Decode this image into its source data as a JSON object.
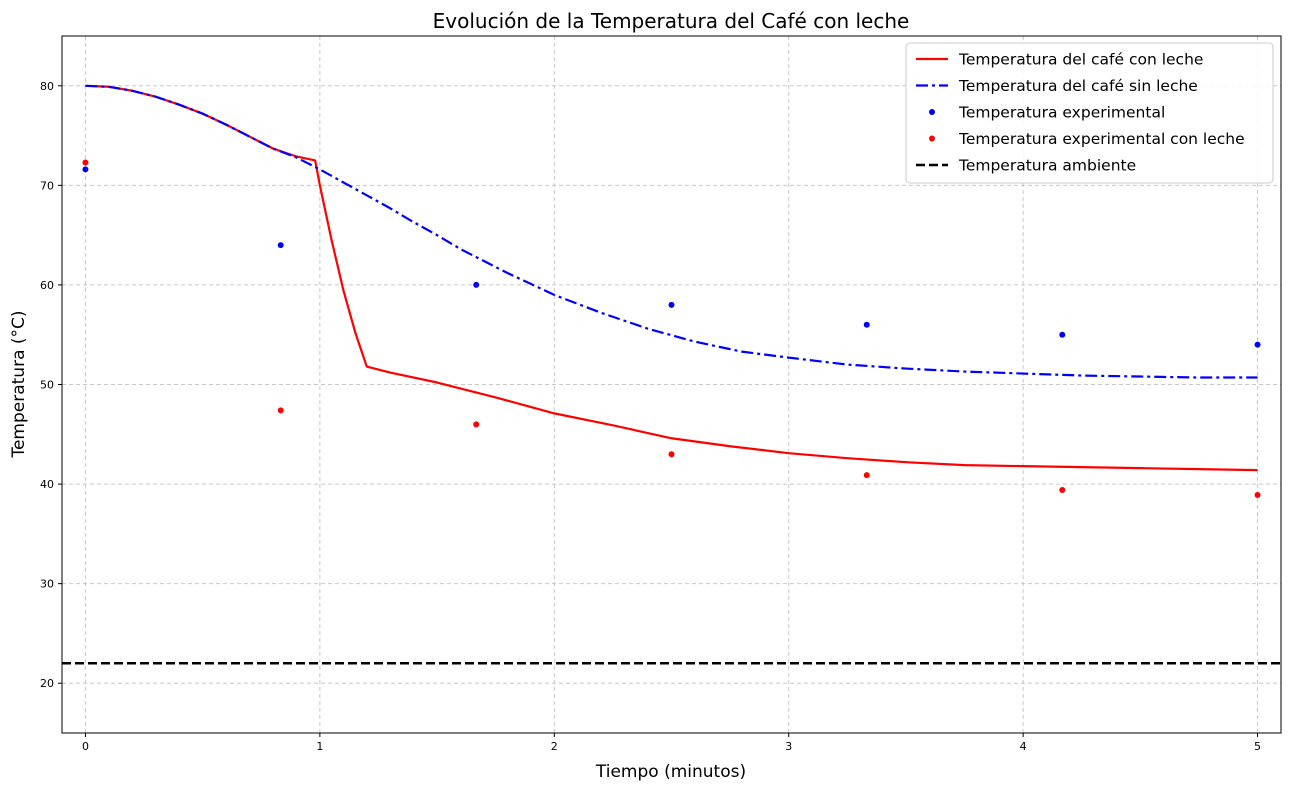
{
  "chart_data": {
    "type": "line",
    "title": "Evolución de la Temperatura del Café con leche",
    "xlabel": "Tiempo (minutos)",
    "ylabel": "Temperatura (°C)",
    "xlim": [
      -0.1,
      5.1
    ],
    "ylim": [
      15,
      85
    ],
    "xticks": [
      0,
      1,
      2,
      3,
      4,
      5
    ],
    "yticks": [
      20,
      30,
      40,
      50,
      60,
      70,
      80
    ],
    "grid": true,
    "legend_position": "top-right",
    "series": [
      {
        "name": "Temperatura del café con leche",
        "kind": "line",
        "color": "#ff0000",
        "style": "solid",
        "x": [
          0,
          0.1,
          0.2,
          0.3,
          0.4,
          0.5,
          0.6,
          0.7,
          0.8,
          0.9,
          0.98,
          1.0,
          1.05,
          1.1,
          1.15,
          1.2,
          1.3,
          1.5,
          1.75,
          2.0,
          2.25,
          2.5,
          2.75,
          3.0,
          3.25,
          3.5,
          3.75,
          4.0,
          4.25,
          4.5,
          4.75,
          5.0
        ],
        "y": [
          80.0,
          79.9,
          79.5,
          78.9,
          78.1,
          77.2,
          76.1,
          74.9,
          73.7,
          72.9,
          72.5,
          70.0,
          64.5,
          59.5,
          55.3,
          51.8,
          51.2,
          50.2,
          48.7,
          47.1,
          45.9,
          44.6,
          43.8,
          43.1,
          42.6,
          42.2,
          41.9,
          41.8,
          41.7,
          41.6,
          41.5,
          41.4
        ]
      },
      {
        "name": "Temperatura del café sin leche",
        "kind": "line",
        "color": "#0000ff",
        "style": "dashdot",
        "x": [
          0,
          0.1,
          0.2,
          0.3,
          0.4,
          0.5,
          0.6,
          0.7,
          0.8,
          0.9,
          1.0,
          1.1,
          1.2,
          1.3,
          1.4,
          1.5,
          1.6,
          1.7,
          1.8,
          1.9,
          2.0,
          2.2,
          2.4,
          2.6,
          2.8,
          3.0,
          3.25,
          3.5,
          3.75,
          4.0,
          4.25,
          4.5,
          4.75,
          5.0
        ],
        "y": [
          80.0,
          79.9,
          79.5,
          78.9,
          78.1,
          77.2,
          76.1,
          74.9,
          73.7,
          72.8,
          71.6,
          70.3,
          69.0,
          67.7,
          66.3,
          65.0,
          63.6,
          62.4,
          61.2,
          60.1,
          59.0,
          57.2,
          55.6,
          54.3,
          53.3,
          52.7,
          52.0,
          51.6,
          51.3,
          51.1,
          50.9,
          50.8,
          50.7,
          50.7
        ]
      },
      {
        "name": "Temperatura experimental",
        "kind": "scatter",
        "color": "#0000ff",
        "x": [
          0,
          0.833,
          1.667,
          2.5,
          3.333,
          4.167,
          5.0
        ],
        "y": [
          71.6,
          64.0,
          60.0,
          58.0,
          56.0,
          55.0,
          54.0
        ]
      },
      {
        "name": "Temperatura experimental con leche",
        "kind": "scatter",
        "color": "#ff0000",
        "x": [
          0,
          0.833,
          1.667,
          2.5,
          3.333,
          4.167,
          5.0
        ],
        "y": [
          72.3,
          47.4,
          46.0,
          43.0,
          40.9,
          39.4,
          38.9
        ]
      },
      {
        "name": "Temperatura ambiente",
        "kind": "hline",
        "color": "#000000",
        "style": "dashed",
        "y": 22
      }
    ]
  }
}
